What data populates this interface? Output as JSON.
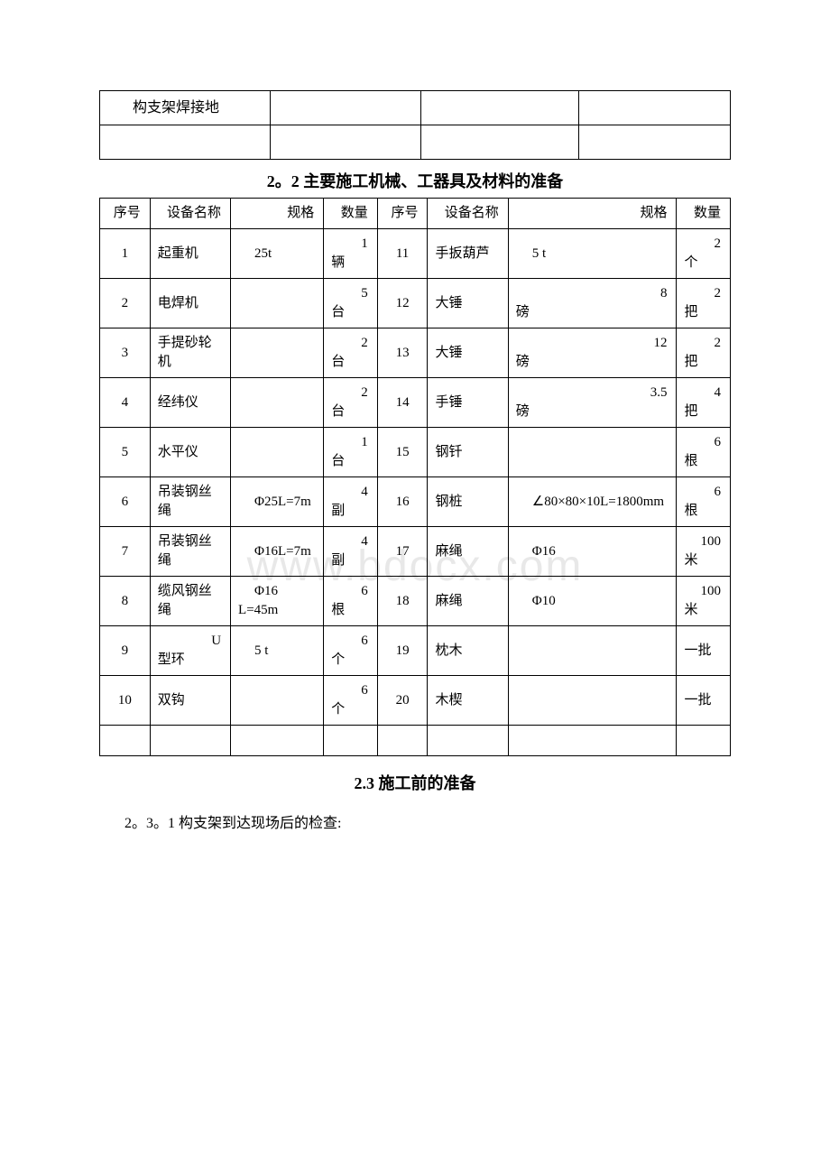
{
  "watermark": "www.bdocx.com",
  "table1": {
    "rows": [
      [
        "构支架焊接地",
        "",
        "",
        ""
      ],
      [
        "",
        "",
        "",
        ""
      ]
    ]
  },
  "section22_title": "2。2 主要施工机械、工器具及材料的准备",
  "table2": {
    "header": {
      "seq": "序号",
      "name": "设备名称",
      "spec": "规格",
      "qty": "数量",
      "seq2": "序号",
      "name2": "设备名称",
      "spec2": "规格",
      "qty2": "数量"
    },
    "rows": [
      {
        "a": [
          "1",
          "起重机",
          "25t",
          "1辆"
        ],
        "b": [
          "11",
          "手扳葫芦",
          "5 t",
          "2个"
        ]
      },
      {
        "a": [
          "2",
          "电焊机",
          "",
          "5台"
        ],
        "b": [
          "12",
          "大锤",
          "8磅",
          "2把"
        ]
      },
      {
        "a": [
          "3",
          "手提砂轮机",
          "",
          "2台"
        ],
        "b": [
          "13",
          "大锤",
          "12磅",
          "2把"
        ]
      },
      {
        "a": [
          "4",
          "经纬仪",
          "",
          "2台"
        ],
        "b": [
          "14",
          "手锤",
          "3.5磅",
          "4把"
        ]
      },
      {
        "a": [
          "5",
          "水平仪",
          "",
          "1台"
        ],
        "b": [
          "15",
          "钢钎",
          "",
          "6根"
        ]
      },
      {
        "a": [
          "6",
          "吊装钢丝绳",
          "Φ25L=7m",
          "4副"
        ],
        "b": [
          "16",
          "钢桩",
          "∠80×80×10L=1800mm",
          "6根"
        ]
      },
      {
        "a": [
          "7",
          "吊装钢丝绳",
          "Φ16L=7m",
          "4副"
        ],
        "b": [
          "17",
          "麻绳",
          "Φ16",
          "100米"
        ]
      },
      {
        "a": [
          "8",
          "缆风钢丝绳",
          "Φ16 L=45m",
          "6根"
        ],
        "b": [
          "18",
          "麻绳",
          "Φ10",
          "100米"
        ]
      },
      {
        "a": [
          "9",
          "U型环",
          "5 t",
          "6个"
        ],
        "b": [
          "19",
          "枕木",
          "",
          "一批"
        ]
      },
      {
        "a": [
          "10",
          "双钩",
          "",
          "6个"
        ],
        "b": [
          "20",
          "木楔",
          "",
          "一批"
        ]
      }
    ]
  },
  "section23_title": "2.3 施工前的准备",
  "body_231": "2。3。1 构支架到达现场后的检查:"
}
